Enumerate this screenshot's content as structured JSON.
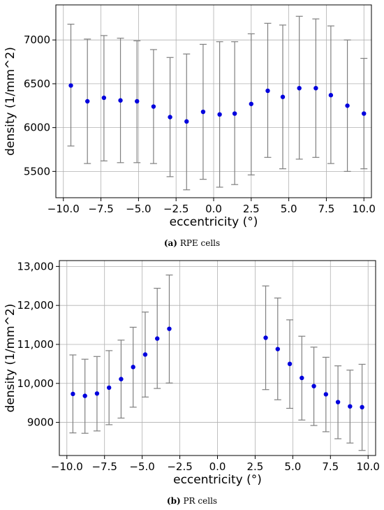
{
  "chart_data": [
    {
      "type": "scatter",
      "subtitle_label": "(a)",
      "subtitle": "RPE cells",
      "xlabel": "eccentricity (°)",
      "ylabel": "density (1/mm^2)",
      "xlim": [
        -10.5,
        10.5
      ],
      "ylim": [
        5200,
        7400
      ],
      "xticks": [
        -10.0,
        -7.5,
        -5.0,
        -2.5,
        0.0,
        2.5,
        5.0,
        7.5,
        10.0
      ],
      "xtick_labels": [
        "−10.0",
        "−7.5",
        "−5.0",
        "−2.5",
        "0.0",
        "2.5",
        "5.0",
        "7.5",
        "10.0"
      ],
      "yticks": [
        5500,
        6000,
        6500,
        7000
      ],
      "ytick_labels": [
        "5500",
        "6000",
        "6500",
        "7000"
      ],
      "grid": true,
      "point_color": "#0000dd",
      "errorbar_color": "#808080",
      "points": [
        {
          "x": -9.5,
          "y": 6480,
          "ylow": 5790,
          "yhigh": 7180
        },
        {
          "x": -8.4,
          "y": 6300,
          "ylow": 5590,
          "yhigh": 7010
        },
        {
          "x": -7.3,
          "y": 6340,
          "ylow": 5620,
          "yhigh": 7050
        },
        {
          "x": -6.2,
          "y": 6310,
          "ylow": 5600,
          "yhigh": 7020
        },
        {
          "x": -5.1,
          "y": 6300,
          "ylow": 5600,
          "yhigh": 6990
        },
        {
          "x": -4.0,
          "y": 6240,
          "ylow": 5590,
          "yhigh": 6890
        },
        {
          "x": -2.9,
          "y": 6120,
          "ylow": 5440,
          "yhigh": 6800
        },
        {
          "x": -1.8,
          "y": 6070,
          "ylow": 5290,
          "yhigh": 6840
        },
        {
          "x": -0.7,
          "y": 6180,
          "ylow": 5410,
          "yhigh": 6950
        },
        {
          "x": 0.4,
          "y": 6150,
          "ylow": 5320,
          "yhigh": 6980
        },
        {
          "x": 1.4,
          "y": 6160,
          "ylow": 5350,
          "yhigh": 6980
        },
        {
          "x": 2.5,
          "y": 6270,
          "ylow": 5460,
          "yhigh": 7070
        },
        {
          "x": 3.6,
          "y": 6420,
          "ylow": 5660,
          "yhigh": 7190
        },
        {
          "x": 4.6,
          "y": 6350,
          "ylow": 5530,
          "yhigh": 7170
        },
        {
          "x": 5.7,
          "y": 6450,
          "ylow": 5640,
          "yhigh": 7270
        },
        {
          "x": 6.8,
          "y": 6450,
          "ylow": 5660,
          "yhigh": 7240
        },
        {
          "x": 7.8,
          "y": 6370,
          "ylow": 5590,
          "yhigh": 7160
        },
        {
          "x": 8.9,
          "y": 6250,
          "ylow": 5500,
          "yhigh": 7000
        },
        {
          "x": 10.0,
          "y": 6160,
          "ylow": 5530,
          "yhigh": 6790
        }
      ]
    },
    {
      "type": "scatter",
      "subtitle_label": "(b)",
      "subtitle": "PR cells",
      "xlabel": "eccentricity (°)",
      "ylabel": "density (1/mm^2)",
      "xlim": [
        -10.5,
        10.5
      ],
      "ylim": [
        8150,
        13150
      ],
      "xticks": [
        -10.0,
        -7.5,
        -5.0,
        -2.5,
        0.0,
        2.5,
        5.0,
        7.5,
        10.0
      ],
      "xtick_labels": [
        "−10.0",
        "−7.5",
        "−5.0",
        "−2.5",
        "0.0",
        "2.5",
        "5.0",
        "7.5",
        "10.0"
      ],
      "yticks": [
        9000,
        10000,
        11000,
        12000,
        13000
      ],
      "ytick_labels": [
        "9000",
        "10,000",
        "11,000",
        "12,000",
        "13,000"
      ],
      "grid": true,
      "point_color": "#0000dd",
      "errorbar_color": "#808080",
      "points": [
        {
          "x": -9.6,
          "y": 9730,
          "ylow": 8730,
          "yhigh": 10730
        },
        {
          "x": -8.8,
          "y": 9680,
          "ylow": 8720,
          "yhigh": 10620
        },
        {
          "x": -8.0,
          "y": 9740,
          "ylow": 8780,
          "yhigh": 10690
        },
        {
          "x": -7.2,
          "y": 9890,
          "ylow": 8940,
          "yhigh": 10840
        },
        {
          "x": -6.4,
          "y": 10110,
          "ylow": 9110,
          "yhigh": 11110
        },
        {
          "x": -5.6,
          "y": 10420,
          "ylow": 9390,
          "yhigh": 11440
        },
        {
          "x": -4.8,
          "y": 10740,
          "ylow": 9650,
          "yhigh": 11830
        },
        {
          "x": -4.0,
          "y": 11150,
          "ylow": 9870,
          "yhigh": 12440
        },
        {
          "x": -3.2,
          "y": 11400,
          "ylow": 10010,
          "yhigh": 12780
        },
        {
          "x": 3.2,
          "y": 11170,
          "ylow": 9840,
          "yhigh": 12500
        },
        {
          "x": 4.0,
          "y": 10880,
          "ylow": 9580,
          "yhigh": 12190
        },
        {
          "x": 4.8,
          "y": 10500,
          "ylow": 9360,
          "yhigh": 11630
        },
        {
          "x": 5.6,
          "y": 10140,
          "ylow": 9060,
          "yhigh": 11210
        },
        {
          "x": 6.4,
          "y": 9930,
          "ylow": 8920,
          "yhigh": 10930
        },
        {
          "x": 7.2,
          "y": 9720,
          "ylow": 8760,
          "yhigh": 10670
        },
        {
          "x": 8.0,
          "y": 9520,
          "ylow": 8580,
          "yhigh": 10450
        },
        {
          "x": 8.8,
          "y": 9410,
          "ylow": 8470,
          "yhigh": 10340
        },
        {
          "x": 9.6,
          "y": 9390,
          "ylow": 8280,
          "yhigh": 10490
        }
      ]
    }
  ]
}
